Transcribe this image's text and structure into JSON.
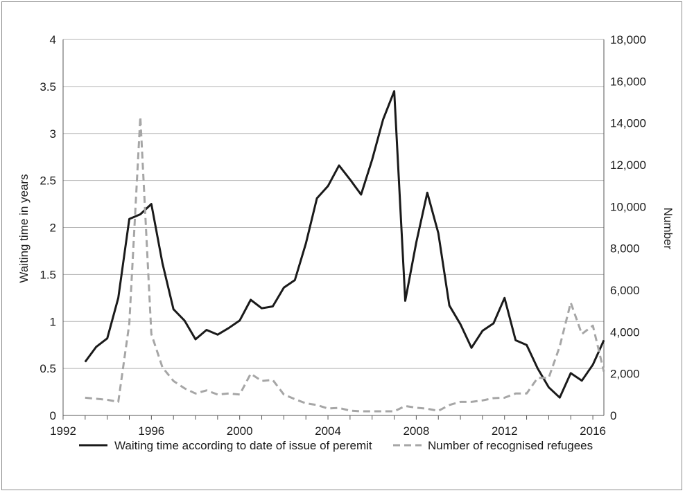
{
  "chart_data": {
    "type": "line",
    "ylabel": "Waiting time in years",
    "y2label": "Number",
    "x_ticks": [
      "1992",
      "1996",
      "2000",
      "2004",
      "2008",
      "2012",
      "2016"
    ],
    "y_ticks": [
      "0",
      "0.5",
      "1",
      "1.5",
      "2",
      "2.5",
      "3",
      "3.5",
      "4"
    ],
    "y2_ticks": [
      "0",
      "2,000",
      "4,000",
      "6,000",
      "8,000",
      "10,000",
      "12,000",
      "14,000",
      "16,000",
      "18,000"
    ],
    "xlim": [
      1992,
      2016.5
    ],
    "ylim": [
      0,
      4
    ],
    "y2lim": [
      0,
      18000
    ],
    "grid": "horizontal",
    "legend_position": "bottom",
    "series": [
      {
        "name": "Waiting time according to date of issue of peremit",
        "axis": "left",
        "style": "solid",
        "color": "#1a1a1a",
        "x": [
          1993.0,
          1993.5,
          1994.0,
          1994.5,
          1995.0,
          1995.5,
          1996.0,
          1996.5,
          1997.0,
          1997.5,
          1998.0,
          1998.5,
          1999.0,
          1999.5,
          2000.0,
          2000.5,
          2001.0,
          2001.5,
          2002.0,
          2002.5,
          2003.0,
          2003.5,
          2004.0,
          2004.5,
          2005.0,
          2005.5,
          2006.0,
          2006.5,
          2007.0,
          2007.5,
          2008.0,
          2008.5,
          2009.0,
          2009.5,
          2010.0,
          2010.5,
          2011.0,
          2011.5,
          2012.0,
          2012.5,
          2013.0,
          2013.5,
          2014.0,
          2014.5,
          2015.0,
          2015.5,
          2016.0,
          2016.5
        ],
        "values": [
          0.57,
          0.73,
          0.82,
          1.25,
          2.09,
          2.14,
          2.25,
          1.62,
          1.13,
          1.01,
          0.81,
          0.91,
          0.86,
          0.93,
          1.01,
          1.23,
          1.14,
          1.16,
          1.36,
          1.44,
          1.83,
          2.31,
          2.44,
          2.66,
          2.51,
          2.35,
          2.72,
          3.15,
          3.45,
          1.22,
          1.84,
          2.37,
          1.94,
          1.17,
          0.97,
          0.72,
          0.9,
          0.98,
          1.25,
          0.8,
          0.75,
          0.5,
          0.3,
          0.19,
          0.45,
          0.37,
          0.54,
          0.8
        ]
      },
      {
        "name": "Number of recognised refugees",
        "axis": "right",
        "style": "dashed",
        "color": "#a6a6a6",
        "x": [
          1993.0,
          1994.0,
          1994.5,
          1995.0,
          1995.5,
          1996.0,
          1996.5,
          1997.0,
          1997.5,
          1998.0,
          1998.5,
          1999.0,
          1999.5,
          2000.0,
          2000.5,
          2001.0,
          2001.5,
          2002.0,
          2002.5,
          2003.0,
          2003.5,
          2004.0,
          2004.5,
          2005.0,
          2005.5,
          2006.0,
          2006.5,
          2007.0,
          2007.5,
          2008.0,
          2008.5,
          2009.0,
          2009.5,
          2010.0,
          2010.5,
          2011.0,
          2011.5,
          2012.0,
          2012.5,
          2013.0,
          2013.5,
          2014.0,
          2014.5,
          2015.0,
          2015.5,
          2016.0,
          2016.5
        ],
        "values": [
          850,
          750,
          650,
          4400,
          14300,
          3900,
          2300,
          1650,
          1300,
          1050,
          1200,
          1000,
          1050,
          1000,
          2000,
          1650,
          1700,
          1000,
          780,
          580,
          500,
          330,
          360,
          230,
          200,
          200,
          200,
          200,
          450,
          370,
          320,
          220,
          500,
          650,
          650,
          720,
          830,
          850,
          1050,
          1050,
          1800,
          1800,
          3300,
          5400,
          3900,
          4300,
          2100
        ]
      }
    ]
  }
}
